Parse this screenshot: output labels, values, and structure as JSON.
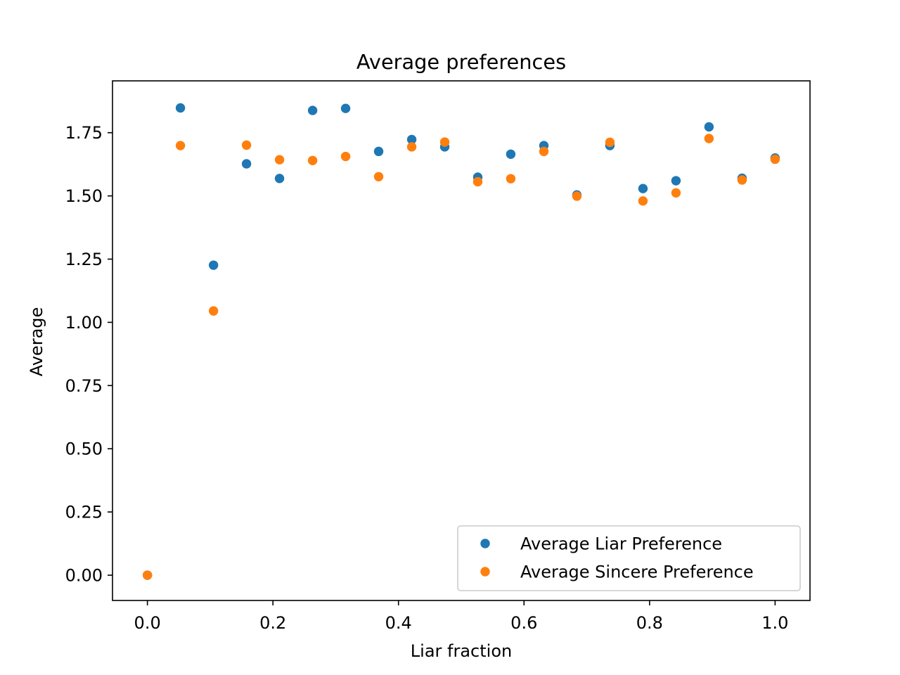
{
  "chart_data": {
    "type": "scatter",
    "title": "Average preferences",
    "xlabel": "Liar fraction",
    "ylabel": "Average",
    "xlim": [
      -0.0556,
      1.0556
    ],
    "ylim": [
      -0.1,
      1.955
    ],
    "x_ticks": [
      0.0,
      0.2,
      0.4,
      0.6,
      0.8,
      1.0
    ],
    "x_tick_labels": [
      "0.0",
      "0.2",
      "0.4",
      "0.6",
      "0.8",
      "1.0"
    ],
    "y_ticks": [
      0.0,
      0.25,
      0.5,
      0.75,
      1.0,
      1.25,
      1.5,
      1.75
    ],
    "y_tick_labels": [
      "0.00",
      "0.25",
      "0.50",
      "0.75",
      "1.00",
      "1.25",
      "1.50",
      "1.75"
    ],
    "grid": false,
    "legend_position": "bottom-right",
    "x": [
      0.0,
      0.0526,
      0.1053,
      0.1579,
      0.2105,
      0.2632,
      0.3158,
      0.3684,
      0.4211,
      0.4737,
      0.5263,
      0.5789,
      0.6316,
      0.6842,
      0.7368,
      0.7895,
      0.8421,
      0.8947,
      0.9474,
      1.0
    ],
    "series": [
      {
        "name": "Average Liar Preference",
        "color": "#1f77b4",
        "values": [
          0.0,
          1.848,
          1.226,
          1.627,
          1.569,
          1.838,
          1.846,
          1.676,
          1.723,
          1.694,
          1.574,
          1.665,
          1.699,
          1.504,
          1.699,
          1.529,
          1.56,
          1.773,
          1.57,
          1.65
        ]
      },
      {
        "name": "Average Sincere Preference",
        "color": "#ff7f0e",
        "values": [
          0.0,
          1.699,
          1.045,
          1.701,
          1.643,
          1.64,
          1.656,
          1.576,
          1.694,
          1.713,
          1.556,
          1.568,
          1.676,
          1.499,
          1.712,
          1.48,
          1.512,
          1.727,
          1.563,
          1.645
        ]
      }
    ]
  }
}
